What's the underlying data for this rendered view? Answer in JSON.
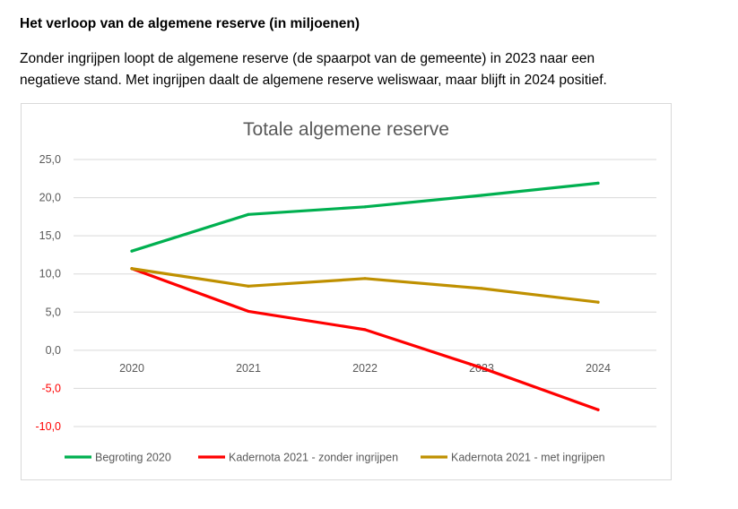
{
  "section": {
    "heading": "Het verloop van de algemene reserve (in miljoenen)",
    "intro_line1": "Zonder ingrijpen loopt de algemene reserve (de spaarpot van de gemeente) in 2023 naar een",
    "intro_line2": "negatieve stand. Met ingrijpen daalt de algemene reserve weliswaar, maar blijft in 2024 positief."
  },
  "chart_data": {
    "type": "line",
    "title": "Totale algemene reserve",
    "xlabel": "",
    "ylabel": "",
    "categories": [
      "2020",
      "2021",
      "2022",
      "2023",
      "2024"
    ],
    "ylim": [
      -10,
      25
    ],
    "yticks": [
      25,
      20,
      15,
      10,
      5,
      0,
      -5,
      -10
    ],
    "ytick_labels": [
      "25,0",
      "20,0",
      "15,0",
      "10,0",
      "5,0",
      "0,0",
      "-5,0",
      "-10,0"
    ],
    "negative_tick_color": "#ff0000",
    "grid": true,
    "legend_position": "bottom",
    "series": [
      {
        "name": "Begroting 2020",
        "color": "#00b050",
        "values": [
          13.0,
          17.8,
          18.8,
          20.3,
          21.9
        ]
      },
      {
        "name": "Kadernota 2021 - zonder ingrijpen",
        "color": "#ff0000",
        "values": [
          10.7,
          5.1,
          2.7,
          -2.3,
          -7.8
        ]
      },
      {
        "name": "Kadernota 2021 - met ingrijpen",
        "color": "#bf9000",
        "values": [
          10.7,
          8.4,
          9.4,
          8.1,
          6.3
        ]
      }
    ]
  }
}
